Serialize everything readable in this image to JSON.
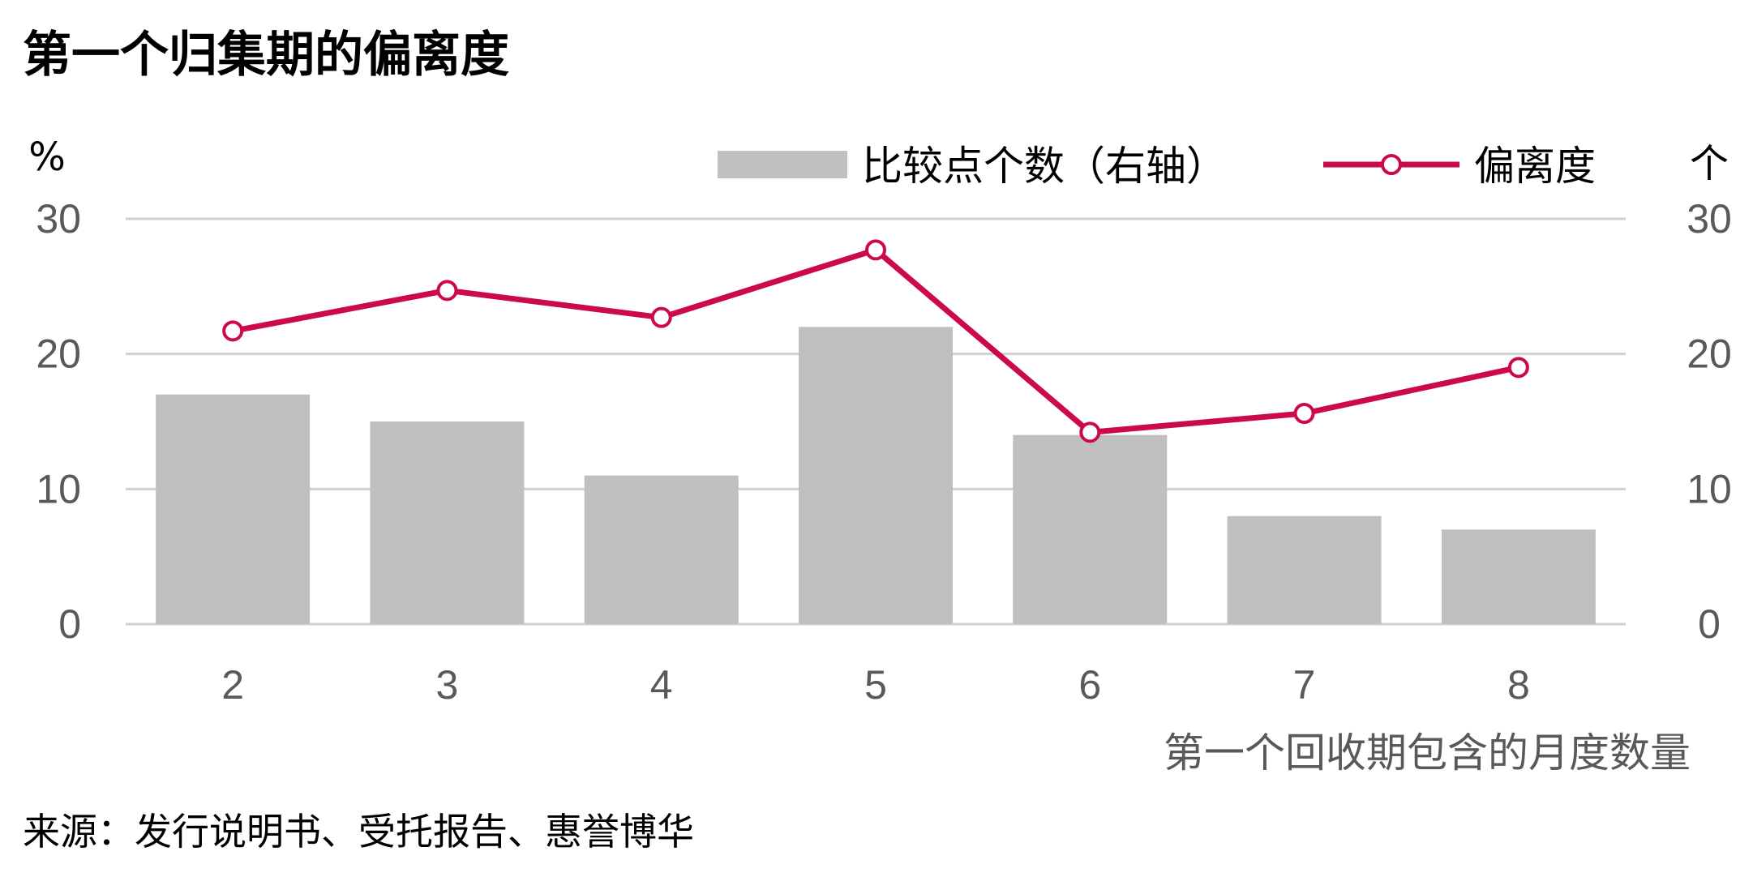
{
  "chart_data": {
    "type": "bar",
    "title": "第一个归集期的偏离度",
    "xlabel": "第一个回收期包含的月度数量",
    "categories": [
      "2",
      "3",
      "4",
      "5",
      "6",
      "7",
      "8"
    ],
    "y_left": {
      "unit": "%",
      "lim": [
        0,
        30
      ],
      "ticks": [
        "0",
        "10",
        "20",
        "30"
      ]
    },
    "y_right": {
      "unit": "个",
      "lim": [
        0,
        30
      ],
      "ticks": [
        "0",
        "10",
        "20",
        "30"
      ]
    },
    "series": [
      {
        "name": "比较点个数（右轴）",
        "type": "bar",
        "axis": "right",
        "color": "#c0c0c0",
        "values": [
          17,
          15,
          11,
          22,
          14,
          8,
          7
        ]
      },
      {
        "name": "偏离度",
        "type": "line",
        "axis": "left",
        "color": "#cc0a4b",
        "marker": "circle-open",
        "values": [
          21.7,
          24.7,
          22.7,
          27.7,
          14.2,
          15.6,
          19.0
        ]
      }
    ],
    "legend_position": "top-right",
    "grid": true,
    "source": "来源：发行说明书、受托报告、惠誉博华"
  }
}
